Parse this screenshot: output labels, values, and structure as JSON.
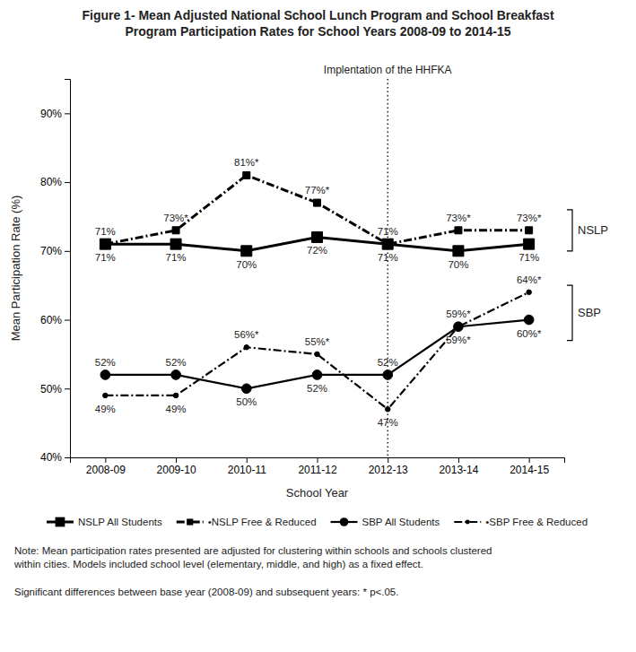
{
  "chart_data": {
    "type": "line",
    "title": "Figure 1- Mean Adjusted National School Lunch Program and School Breakfast\nProgram Participation Rates for School Years 2008-09 to 2014-15",
    "xlabel": "School Year",
    "ylabel": "Mean Participation Rate (%)",
    "categories": [
      "2008-09",
      "2009-10",
      "2010-11",
      "2011-12",
      "2012-13",
      "2013-14",
      "2014-15"
    ],
    "ylim": [
      40,
      95
    ],
    "yticks": [
      {
        "value": 40,
        "label": "40%"
      },
      {
        "value": 50,
        "label": "50%"
      },
      {
        "value": 60,
        "label": "60%"
      },
      {
        "value": 70,
        "label": "70%"
      },
      {
        "value": 80,
        "label": "80%"
      },
      {
        "value": 90,
        "label": "90%"
      }
    ],
    "grid": false,
    "legend": "bottom",
    "data_labels": true,
    "series": [
      {
        "name": "NSLP All Students",
        "color": "#000000",
        "marker": "square",
        "line_style": "solid",
        "values": [
          71,
          71,
          70,
          72,
          71,
          70,
          71
        ],
        "value_labels": [
          "71%",
          "71%",
          "70%",
          "72%",
          "71%",
          "70%",
          "71%"
        ]
      },
      {
        "name": "•NSLP Free & Reduced",
        "color": "#000000",
        "marker": "square",
        "line_style": "dashdot",
        "values": [
          71,
          73,
          81,
          77,
          71,
          73,
          73
        ],
        "value_labels": [
          "71%",
          "73%*",
          "81%*",
          "77%*",
          "71%",
          "73%*",
          "73%*"
        ]
      },
      {
        "name": "SBP All Students",
        "color": "#000000",
        "marker": "circle",
        "line_style": "solid",
        "values": [
          52,
          52,
          50,
          52,
          52,
          59,
          60
        ],
        "value_labels": [
          "52%",
          "52%",
          "50%",
          "52%",
          "52%",
          "59%*",
          "60%*"
        ]
      },
      {
        "name": "•SBP Free & Reduced",
        "color": "#000000",
        "marker": "circle",
        "line_style": "dashdot",
        "values": [
          49,
          49,
          56,
          55,
          47,
          59,
          64
        ],
        "value_labels": [
          "49%",
          "49%",
          "56%*",
          "55%*",
          "47%",
          "59%*",
          "64%*"
        ]
      }
    ],
    "annotations": [
      {
        "type": "vline",
        "x": "2012-13",
        "text": "Implentation of the HHFKA"
      }
    ],
    "brackets": [
      {
        "label": "NSLP",
        "range": [
          70,
          76
        ]
      },
      {
        "label": "SBP",
        "range": [
          57,
          65
        ]
      }
    ],
    "notes": [
      "Note: Mean participation rates presented are adjusted for clustering within schools and schools clustered\nwithin cities. Models included school level (elementary, middle, and high) as a fixed effect.",
      "Significant differences between base year (2008-09) and subsequent years: * p<.05."
    ]
  }
}
